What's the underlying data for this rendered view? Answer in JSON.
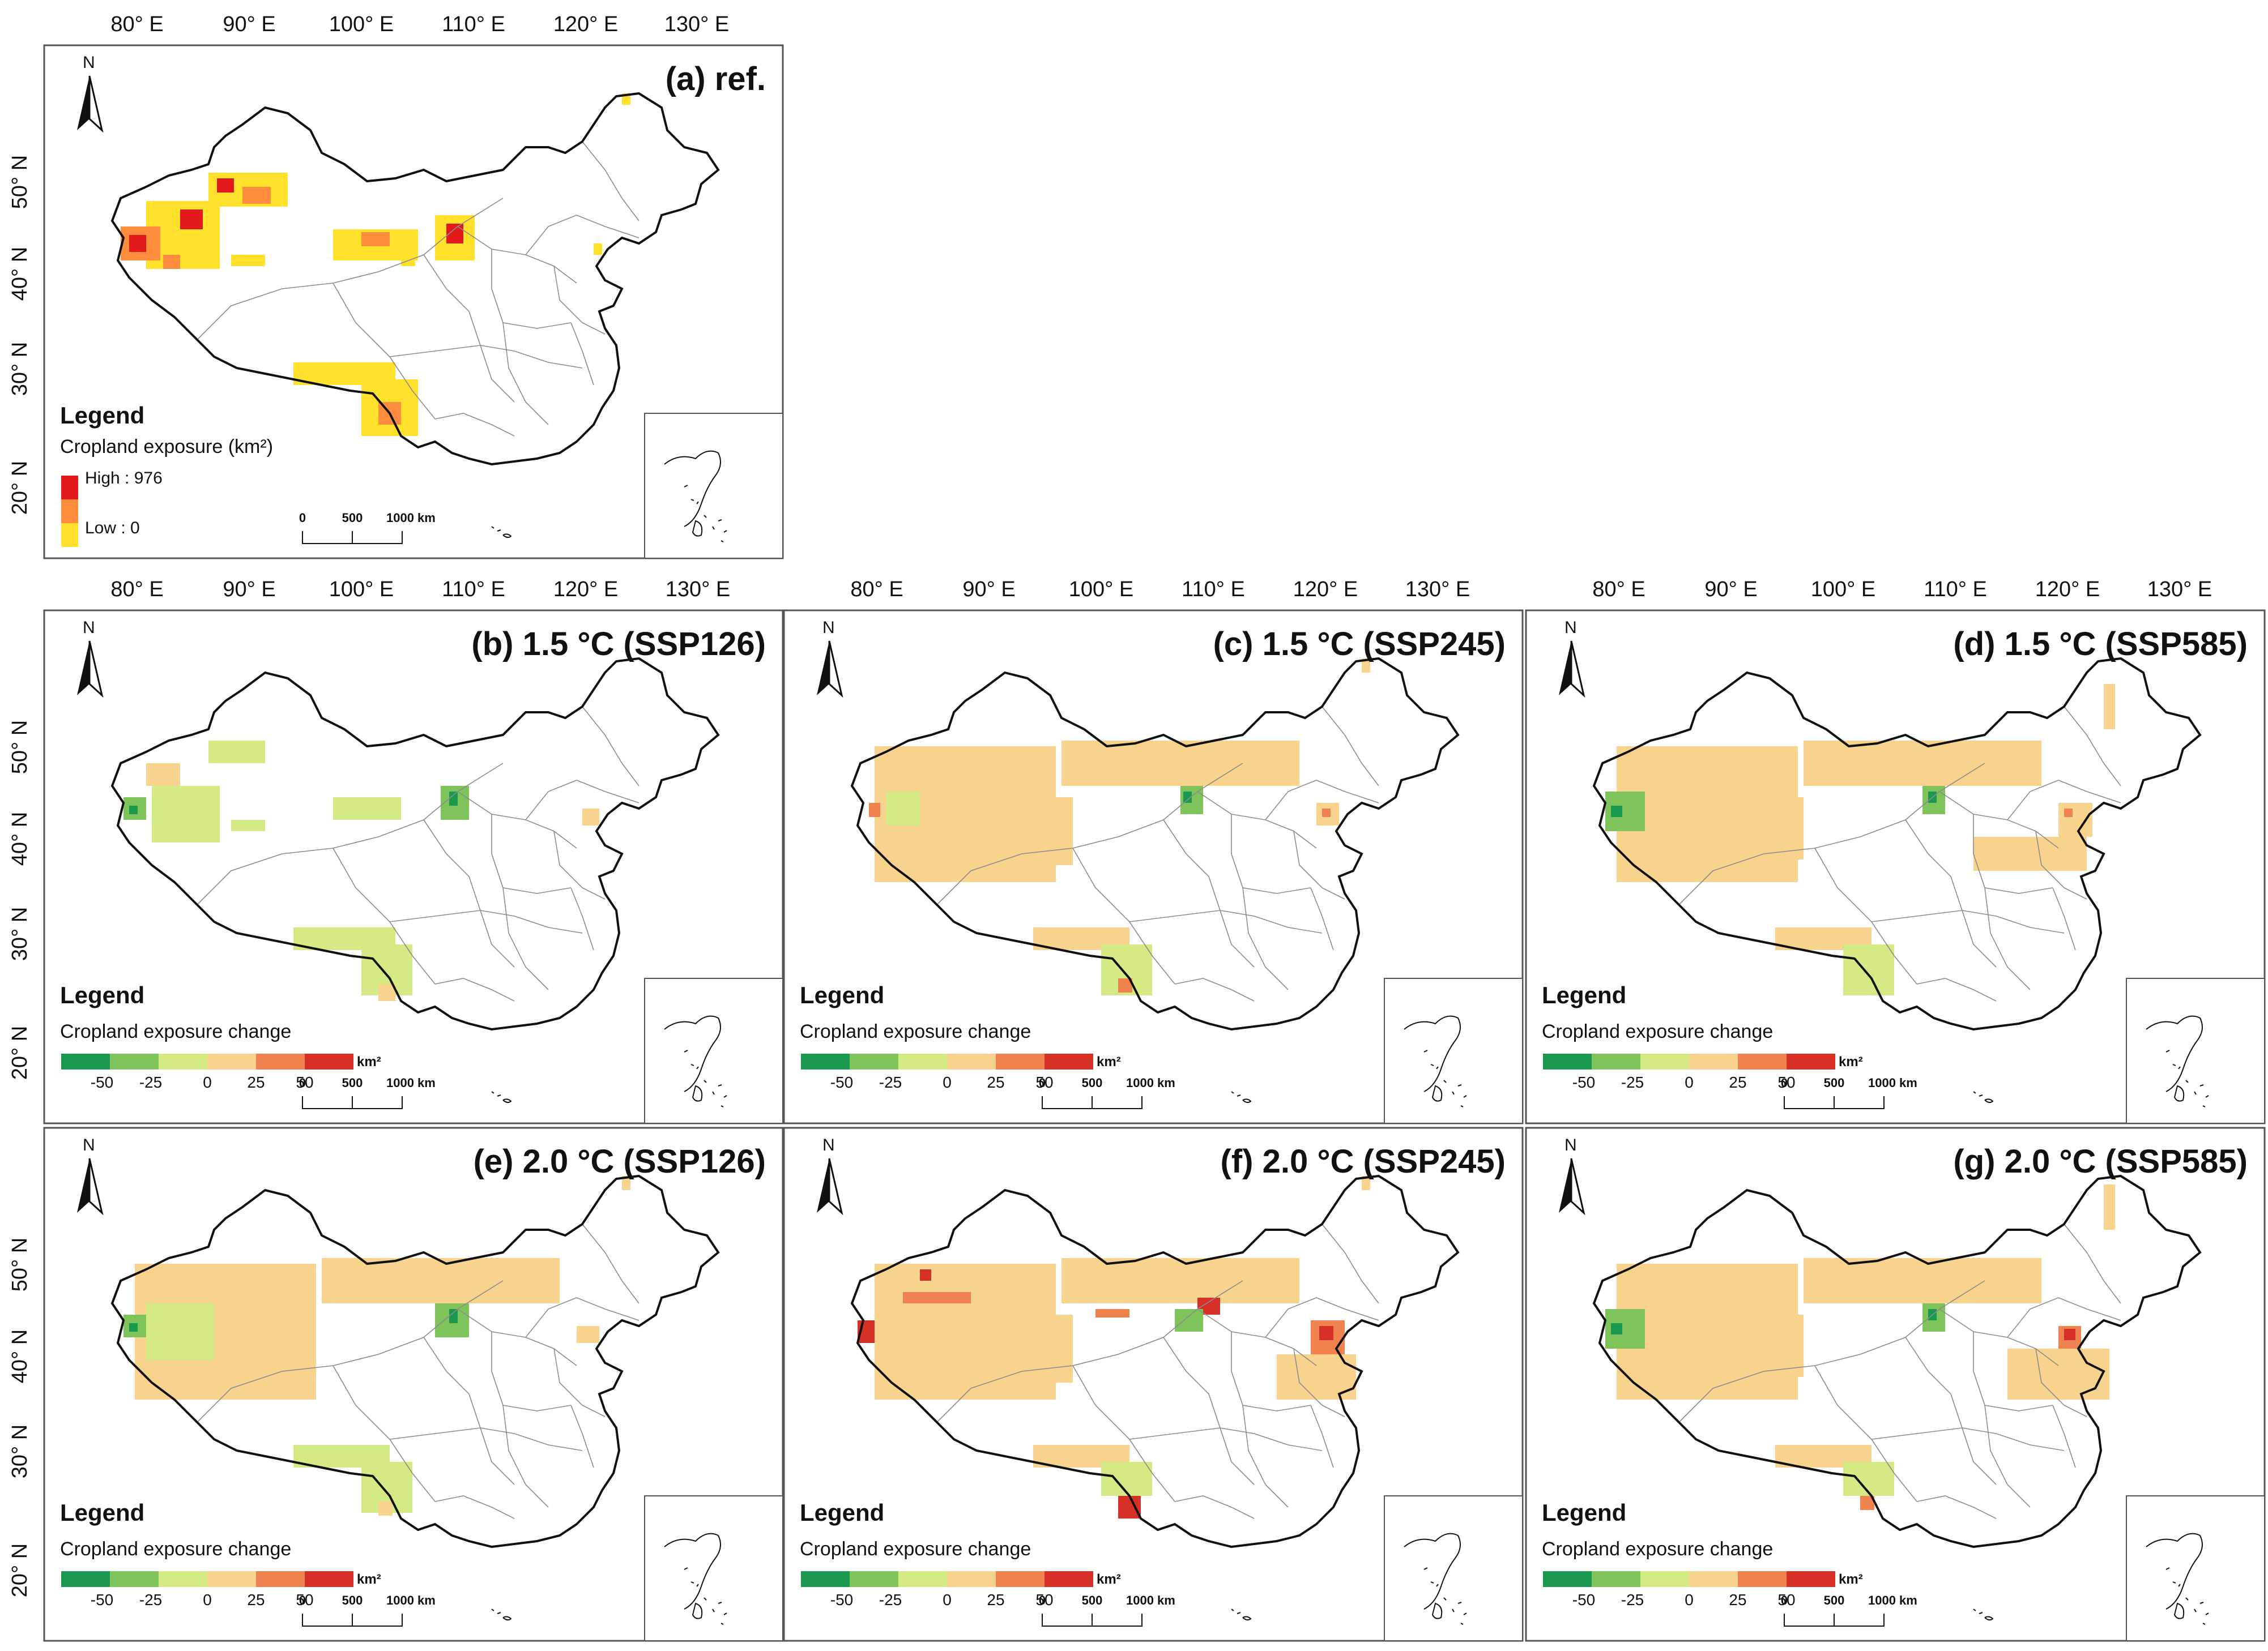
{
  "figure": {
    "lon_labels": [
      "80° E",
      "90° E",
      "100° E",
      "110° E",
      "120° E",
      "130° E"
    ],
    "lat_labels": [
      "50° N",
      "40° N",
      "30° N",
      "20° N"
    ],
    "north_label": "N",
    "legend_title": "Legend",
    "scale_labels": [
      "0",
      "500",
      "1000 km"
    ],
    "colors": {
      "neg_strong": "#1a9850",
      "neg_mid": "#7fc45a",
      "neg_weak": "#d4ea85",
      "pos_weak": "#f8d38e",
      "pos_mid": "#f0824f",
      "pos_strong": "#d73027",
      "ref_high": "#e31a1c",
      "ref_mid": "#fd8d3c",
      "ref_low": "#ffe12c"
    }
  },
  "ref_legend": {
    "subtitle": "Cropland exposure (km²)",
    "high": "High : 976",
    "low": "Low : 0"
  },
  "change_legend": {
    "subtitle": "Cropland exposure change",
    "ticks": [
      "-50",
      "-25",
      "0",
      "25",
      "50"
    ],
    "unit": "km²"
  },
  "panels": [
    {
      "id": "a",
      "title": "(a) ref."
    },
    {
      "id": "b",
      "title": "(b) 1.5 °C  (SSP126)"
    },
    {
      "id": "c",
      "title": "(c) 1.5 °C  (SSP245)"
    },
    {
      "id": "d",
      "title": "(d) 1.5 °C  (SSP585)"
    },
    {
      "id": "e",
      "title": "(e) 2.0 °C  (SSP126)"
    },
    {
      "id": "f",
      "title": "(f) 2.0 °C  (SSP245)"
    },
    {
      "id": "g",
      "title": "(g) 2.0 °C  (SSP585)"
    }
  ]
}
